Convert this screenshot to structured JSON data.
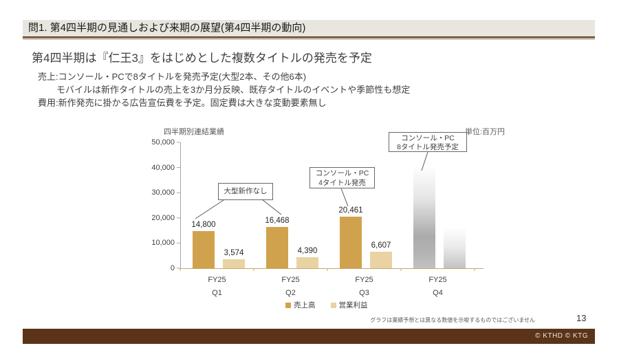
{
  "page": {
    "header_title": "問1. 第4四半期の見通しおよび来期の展望(第4四半期の動向)",
    "footnote": "グラフは業績予想とは異なる数値を示唆するものではございません",
    "page_number": "13",
    "footer_copyright": "© KTHD © KTG",
    "accent_brown": "#5a3318",
    "header_bg": "#e9e5df"
  },
  "content": {
    "heading": "第4四半期は『仁王3』をはじめとした複数タイトルの発売を予定",
    "lines": [
      {
        "text": "売上:コンソール・PCで8タイトルを発売予定(大型2本、その他6本)",
        "indent": false
      },
      {
        "text": "モバイルは新作タイトルの売上を3か月分反映、既存タイトルのイベントや季節性も想定",
        "indent": true
      },
      {
        "text": "費用:新作発売に掛かる広告宣伝費を予定。固定費は大きな変動要素無し",
        "indent": false
      }
    ]
  },
  "chart_data": {
    "type": "bar",
    "title": "四半期別連結業績",
    "unit_label": "単位:百万円",
    "categories": [
      [
        "FY25",
        "Q1"
      ],
      [
        "FY25",
        "Q2"
      ],
      [
        "FY25",
        "Q3"
      ],
      [
        "FY25",
        "Q4"
      ]
    ],
    "series": [
      {
        "name": "売上高",
        "color": "#d1a24d",
        "values": [
          14800,
          16468,
          20461,
          40000
        ],
        "labels": [
          "14,800",
          "16,468",
          "20,461",
          null
        ]
      },
      {
        "name": "営業利益",
        "color": "#e9d3a3",
        "values": [
          3574,
          4390,
          6607,
          16000
        ],
        "labels": [
          "3,574",
          "4,390",
          "6,607",
          null
        ]
      }
    ],
    "forecast_group_index": 3,
    "forecast_style": "gray-gradient-unlabeled",
    "ylim": [
      0,
      50000
    ],
    "yticks": [
      "0",
      "10,000",
      "20,000",
      "30,000",
      "40,000",
      "50,000"
    ],
    "grid": false,
    "legend_position": "bottom",
    "annotations": [
      {
        "lines": [
          "大型新作なし"
        ],
        "targets": [
          "FY25 Q1 売上高",
          "FY25 Q2 売上高"
        ]
      },
      {
        "lines": [
          "コンソール・PC",
          "4タイトル発売"
        ],
        "targets": [
          "FY25 Q3 売上高"
        ]
      },
      {
        "lines": [
          "コンソール・PC",
          "8タイトル発売予定"
        ],
        "targets": [
          "FY25 Q4 売上高"
        ]
      }
    ]
  }
}
